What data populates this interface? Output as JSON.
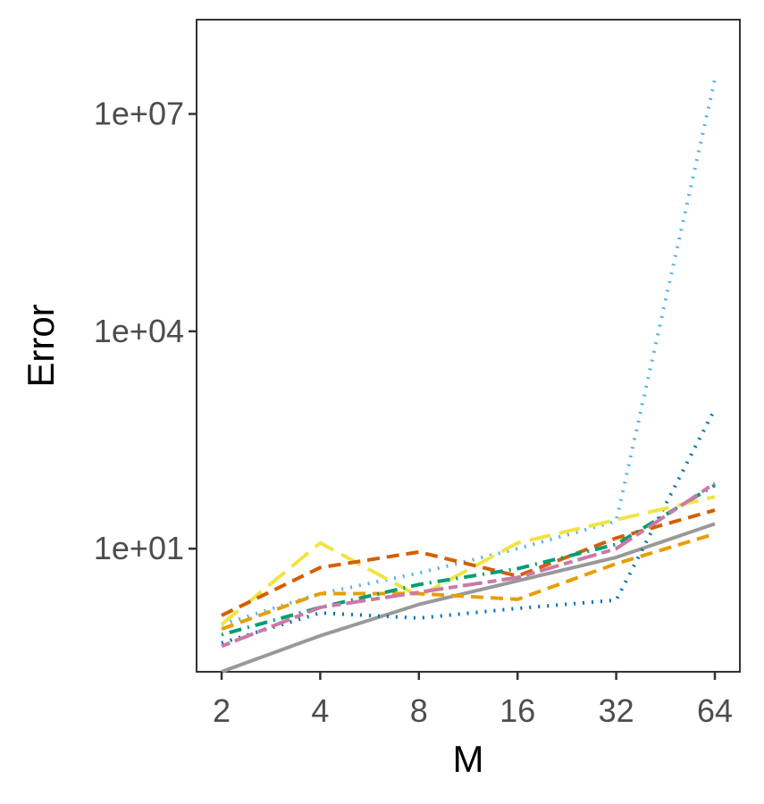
{
  "chart_data": {
    "type": "line",
    "title": "",
    "xlabel": "M",
    "ylabel": "Error",
    "x_scale": "log2",
    "y_scale": "log10",
    "x": [
      2,
      4,
      8,
      16,
      32,
      64
    ],
    "x_tick_labels": [
      "2",
      "4",
      "8",
      "16",
      "32",
      "64"
    ],
    "y_ticks": [
      10,
      10000,
      10000000
    ],
    "y_tick_labels": [
      "1e+01",
      "1e+04",
      "1e+07"
    ],
    "ylim": [
      0.2,
      200000000
    ],
    "grid": false,
    "legend": "none",
    "series": [
      {
        "color": "#999999",
        "dash": "solid",
        "values": [
          0.2,
          0.63,
          1.7,
          3.6,
          7.6,
          22
        ]
      },
      {
        "color": "#56B4E9",
        "dash": "dotted",
        "values": [
          0.9,
          2.4,
          4.6,
          10,
          24,
          30000000
        ]
      },
      {
        "color": "#0072B2",
        "dash": "dotted",
        "values": [
          0.5,
          1.3,
          1.1,
          1.5,
          1.95,
          850
        ]
      },
      {
        "color": "#F0E442",
        "dash": "longdash",
        "values": [
          0.9,
          12,
          2.2,
          12,
          25,
          52
        ]
      },
      {
        "color": "#D55E00",
        "dash": "dashed",
        "values": [
          1.2,
          5.5,
          9,
          4.2,
          14,
          34
        ]
      },
      {
        "color": "#E69F00",
        "dash": "dashed",
        "values": [
          0.78,
          2.4,
          2.4,
          2.0,
          6.2,
          16
        ]
      },
      {
        "color": "#009E73",
        "dash": "dotdash",
        "values": [
          0.65,
          1.55,
          3.2,
          5.3,
          11.5,
          75
        ]
      },
      {
        "color": "#CC79A7",
        "dash": "twodash",
        "values": [
          0.45,
          1.55,
          2.5,
          4.0,
          10,
          80
        ]
      }
    ]
  }
}
